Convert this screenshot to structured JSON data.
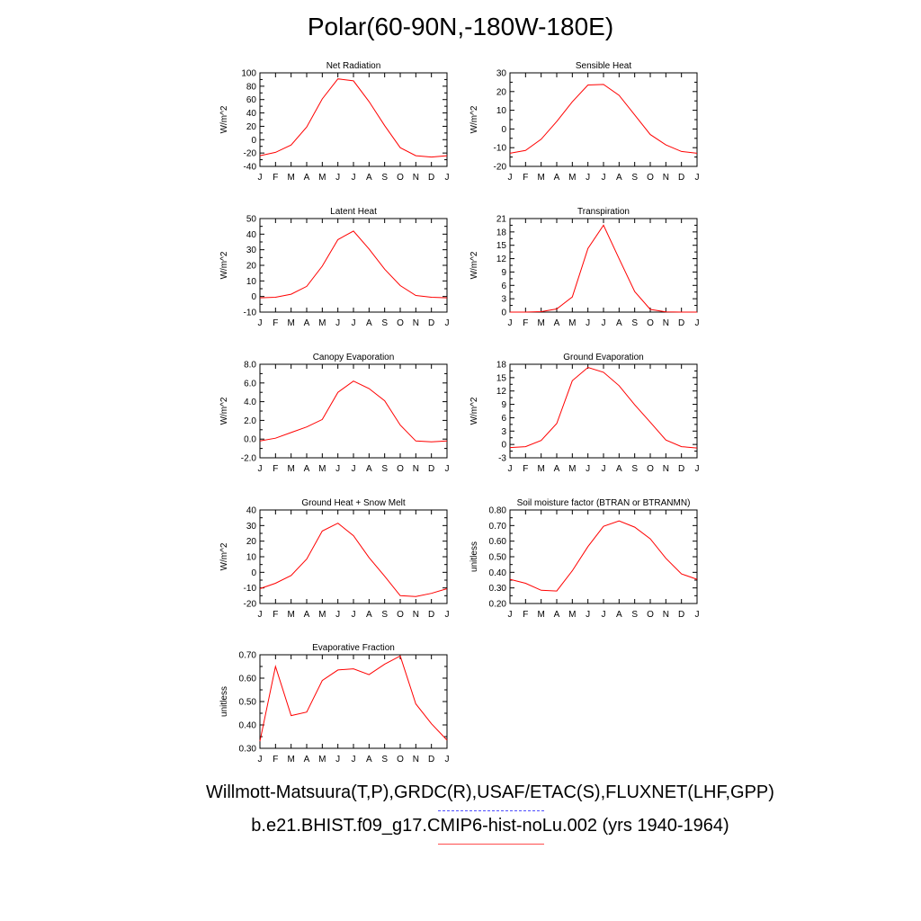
{
  "figure": {
    "title": "Polar(60-90N,-180W-180E)",
    "legend_obs": "Willmott-Matsuura(T,P),GRDC(R),USAF/ETAC(S),FLUXNET(LHF,GPP)",
    "legend_model": "b.e21.BHIST.f09_g17.CMIP6-hist-noLu.002 (yrs 1940-1964)",
    "colors": {
      "model_line": "#ff0000",
      "obs_dash": "#4d4dff",
      "model_legend_line": "#ff4d4d"
    }
  },
  "chart_data": [
    {
      "type": "line",
      "title": "Net Radiation",
      "ylabel": "W/m^2",
      "categories": [
        "J",
        "F",
        "M",
        "A",
        "M",
        "J",
        "J",
        "A",
        "S",
        "O",
        "N",
        "D",
        "J"
      ],
      "ylim": [
        -40,
        100
      ],
      "yticks": [
        "-40",
        "-20",
        "0",
        "20",
        "40",
        "60",
        "80",
        "100"
      ],
      "series": [
        {
          "values": [
            -24,
            -19,
            -8,
            19,
            61,
            91,
            88,
            57,
            21,
            -12,
            -24,
            -26,
            -24
          ]
        }
      ]
    },
    {
      "type": "line",
      "title": "Sensible Heat",
      "ylabel": "W/m^2",
      "categories": [
        "J",
        "F",
        "M",
        "A",
        "M",
        "J",
        "J",
        "A",
        "S",
        "O",
        "N",
        "D",
        "J"
      ],
      "ylim": [
        -20,
        30
      ],
      "yticks": [
        "-20",
        "-10",
        "0",
        "10",
        "20",
        "30"
      ],
      "series": [
        {
          "values": [
            -13,
            -11.5,
            -5.5,
            4,
            14.5,
            23.5,
            23.8,
            18,
            7.5,
            -3,
            -8.5,
            -12,
            -13
          ]
        }
      ]
    },
    {
      "type": "line",
      "title": "Latent Heat",
      "ylabel": "W/m^2",
      "categories": [
        "J",
        "F",
        "M",
        "A",
        "M",
        "J",
        "J",
        "A",
        "S",
        "O",
        "N",
        "D",
        "J"
      ],
      "ylim": [
        -10,
        50
      ],
      "yticks": [
        "-10",
        "0",
        "10",
        "20",
        "30",
        "40",
        "50"
      ],
      "series": [
        {
          "values": [
            -0.8,
            -0.5,
            1.5,
            6.5,
            19.5,
            36.5,
            42,
            30.5,
            17.5,
            7,
            0.7,
            -0.5,
            -0.8
          ]
        }
      ]
    },
    {
      "type": "line",
      "title": "Transpiration",
      "ylabel": "W/m^2",
      "categories": [
        "J",
        "F",
        "M",
        "A",
        "M",
        "J",
        "J",
        "A",
        "S",
        "O",
        "N",
        "D",
        "J"
      ],
      "ylim": [
        0,
        21
      ],
      "yticks": [
        "0",
        "3",
        "6",
        "9",
        "12",
        "15",
        "18",
        "21"
      ],
      "series": [
        {
          "values": [
            0,
            0,
            0.1,
            0.7,
            3.4,
            14.3,
            19.5,
            12,
            4.6,
            0.6,
            0.05,
            0,
            0
          ]
        }
      ]
    },
    {
      "type": "line",
      "title": "Canopy Evaporation",
      "ylabel": "W/m^2",
      "categories": [
        "J",
        "F",
        "M",
        "A",
        "M",
        "J",
        "J",
        "A",
        "S",
        "O",
        "N",
        "D",
        "J"
      ],
      "ylim": [
        -2,
        8
      ],
      "yticks": [
        "-2.0",
        "0.0",
        "2.0",
        "4.0",
        "6.0",
        "8.0"
      ],
      "series": [
        {
          "values": [
            -0.2,
            0.1,
            0.7,
            1.3,
            2.1,
            5,
            6.2,
            5.4,
            4.1,
            1.5,
            -0.2,
            -0.3,
            -0.2
          ]
        }
      ]
    },
    {
      "type": "line",
      "title": "Ground Evaporation",
      "ylabel": "W/m^2",
      "categories": [
        "J",
        "F",
        "M",
        "A",
        "M",
        "J",
        "J",
        "A",
        "S",
        "O",
        "N",
        "D",
        "J"
      ],
      "ylim": [
        -3,
        18
      ],
      "yticks": [
        "-3",
        "0",
        "3",
        "6",
        "9",
        "12",
        "15",
        "18"
      ],
      "series": [
        {
          "values": [
            -0.7,
            -0.5,
            0.9,
            4.7,
            14.3,
            17.3,
            16.2,
            13.2,
            8.9,
            5,
            1,
            -0.5,
            -0.8
          ]
        }
      ]
    },
    {
      "type": "line",
      "title": "Ground Heat + Snow Melt",
      "ylabel": "W/m^2",
      "categories": [
        "J",
        "F",
        "M",
        "A",
        "M",
        "J",
        "J",
        "A",
        "S",
        "O",
        "N",
        "D",
        "J"
      ],
      "ylim": [
        -20,
        40
      ],
      "yticks": [
        "-20",
        "-10",
        "0",
        "10",
        "20",
        "30",
        "40"
      ],
      "series": [
        {
          "values": [
            -10.5,
            -7,
            -2,
            8.5,
            26.5,
            31.5,
            23.5,
            9.5,
            -2.5,
            -15,
            -15.5,
            -13.5,
            -10.5
          ]
        }
      ]
    },
    {
      "type": "line",
      "title": "Soil moisture factor (BTRAN or BTRANMN)",
      "ylabel": "unitless",
      "categories": [
        "J",
        "F",
        "M",
        "A",
        "M",
        "J",
        "J",
        "A",
        "S",
        "O",
        "N",
        "D",
        "J"
      ],
      "ylim": [
        0.2,
        0.8
      ],
      "yticks": [
        "0.20",
        "0.30",
        "0.40",
        "0.50",
        "0.60",
        "0.70",
        "0.80"
      ],
      "series": [
        {
          "values": [
            0.355,
            0.33,
            0.285,
            0.28,
            0.41,
            0.565,
            0.695,
            0.73,
            0.69,
            0.615,
            0.49,
            0.39,
            0.355
          ]
        }
      ]
    },
    {
      "type": "line",
      "title": "Evaporative Fraction",
      "ylabel": "unitless",
      "categories": [
        "J",
        "F",
        "M",
        "A",
        "M",
        "J",
        "J",
        "A",
        "S",
        "O",
        "N",
        "D",
        "J"
      ],
      "ylim": [
        0.3,
        0.7
      ],
      "yticks": [
        "0.30",
        "0.40",
        "0.50",
        "0.60",
        "0.70"
      ],
      "series": [
        {
          "values": [
            0.33,
            0.65,
            0.44,
            0.455,
            0.59,
            0.635,
            0.64,
            0.615,
            0.66,
            0.695,
            0.49,
            0.405,
            0.335
          ]
        }
      ]
    }
  ]
}
